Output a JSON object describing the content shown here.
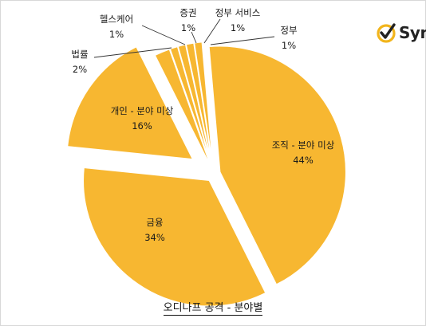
{
  "brand": {
    "logo_text": "Syn"
  },
  "chart_data": {
    "type": "pie",
    "title": "오디나프 공격 - 분야별",
    "slices": [
      {
        "name": "조직 - 분야 미상",
        "value": 44,
        "label": "44%"
      },
      {
        "name": "금융",
        "value": 34,
        "label": "34%"
      },
      {
        "name": "개인 - 분야 미상",
        "value": 16,
        "label": "16%"
      },
      {
        "name": "법률",
        "value": 2,
        "label": "2%"
      },
      {
        "name": "헬스케어",
        "value": 1,
        "label": "1%"
      },
      {
        "name": "증권",
        "value": 1,
        "label": "1%"
      },
      {
        "name": "정부 서비스",
        "value": 1,
        "label": "1%"
      },
      {
        "name": "정부",
        "value": 1,
        "label": "1%"
      }
    ],
    "colors": {
      "slice": "#f7b731",
      "slice_stroke": "#ffffff"
    }
  }
}
